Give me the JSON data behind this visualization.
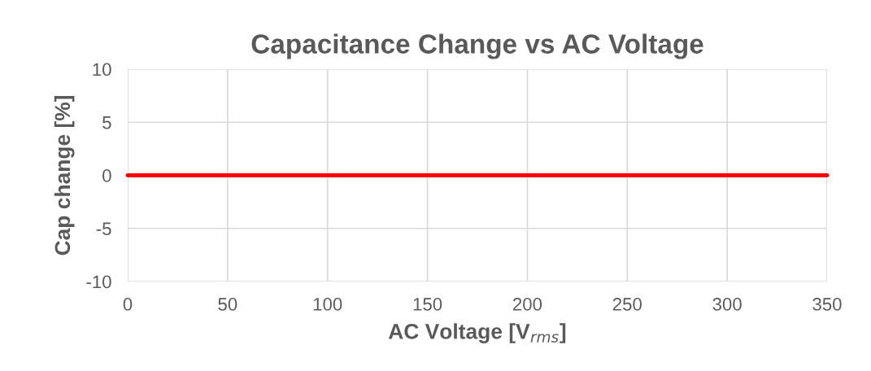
{
  "chart_data": {
    "type": "line",
    "title": "Capacitance Change vs AC Voltage",
    "xlabel": "AC Voltage [V$_{rms}$]",
    "ylabel": "Cap change [%]",
    "x": [
      0,
      350
    ],
    "series": [
      {
        "color": "#ff0000",
        "values": [
          0,
          0
        ]
      }
    ],
    "xlim": [
      0,
      350
    ],
    "xticks": [
      0,
      50,
      100,
      150,
      200,
      250,
      300,
      350
    ],
    "ylim": [
      -10,
      10
    ],
    "yticks": [
      -10,
      -5,
      0,
      5,
      10
    ],
    "grid": true,
    "legend": false,
    "marker": "none",
    "line_style": "solid"
  }
}
